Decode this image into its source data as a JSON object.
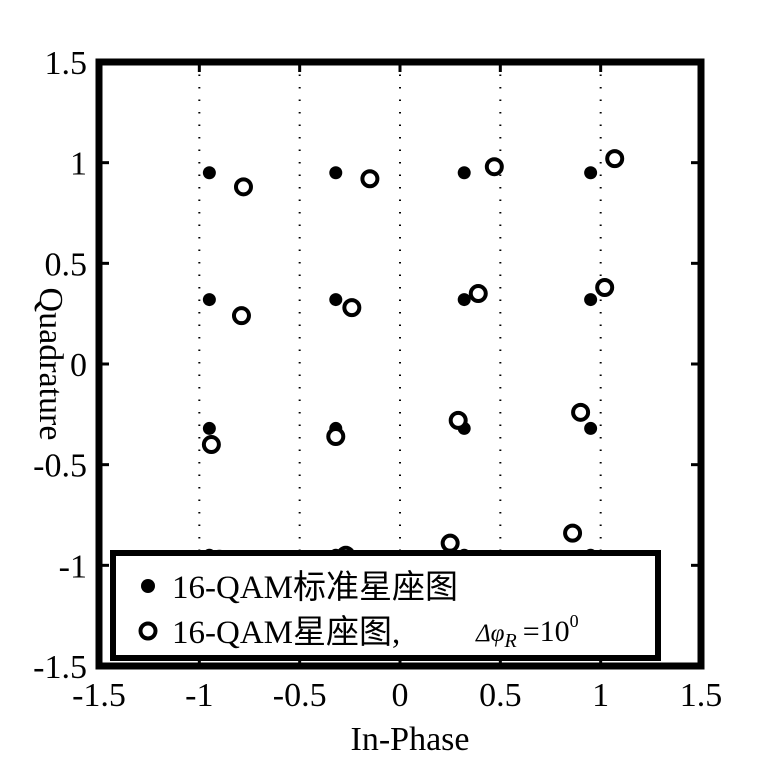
{
  "chart_data": {
    "type": "scatter",
    "title": "",
    "xlabel": "In-Phase",
    "ylabel": "Quadrature",
    "xlim": [
      -1.5,
      1.5
    ],
    "ylim": [
      -1.5,
      1.5
    ],
    "xticks": [
      -1.5,
      -1,
      -0.5,
      0,
      0.5,
      1,
      1.5
    ],
    "yticks": [
      -1.5,
      -1,
      -0.5,
      0,
      0.5,
      1,
      1.5
    ],
    "xtick_labels": [
      "-1.5",
      "-1",
      "-0.5",
      "0",
      "0.5",
      "1",
      "1.5"
    ],
    "ytick_labels": [
      "-1.5",
      "-1",
      "-0.5",
      "0",
      "0.5",
      "1",
      "1.5"
    ],
    "grid": "vertical dotted",
    "legend_position": "bottom",
    "series": [
      {
        "name": "16-QAM标准星座图",
        "marker": "filled-dot",
        "color": "#000000",
        "points": [
          [
            -0.95,
            0.95
          ],
          [
            -0.32,
            0.95
          ],
          [
            0.32,
            0.95
          ],
          [
            0.95,
            0.95
          ],
          [
            -0.95,
            0.32
          ],
          [
            -0.32,
            0.32
          ],
          [
            0.32,
            0.32
          ],
          [
            0.95,
            0.32
          ],
          [
            -0.95,
            -0.32
          ],
          [
            -0.32,
            -0.32
          ],
          [
            0.32,
            -0.32
          ],
          [
            0.95,
            -0.32
          ],
          [
            -0.95,
            -0.95
          ],
          [
            -0.32,
            -0.95
          ],
          [
            0.32,
            -0.95
          ],
          [
            0.95,
            -0.95
          ]
        ]
      },
      {
        "name": "16-QAM星座图,",
        "name_math": "Δφ",
        "name_math_sub": "R",
        "name_math_rest": "=10",
        "name_math_sup": "0",
        "marker": "hollow-circle",
        "color": "#000000",
        "points": [
          [
            -0.78,
            0.88
          ],
          [
            -0.15,
            0.92
          ],
          [
            0.47,
            0.98
          ],
          [
            1.07,
            1.02
          ],
          [
            -0.79,
            0.24
          ],
          [
            -0.24,
            0.28
          ],
          [
            0.39,
            0.35
          ],
          [
            1.02,
            0.38
          ],
          [
            -0.94,
            -0.4
          ],
          [
            -0.32,
            -0.36
          ],
          [
            0.29,
            -0.28
          ],
          [
            0.9,
            -0.24
          ],
          [
            -0.9,
            -0.97
          ],
          [
            -0.27,
            -0.95
          ],
          [
            0.25,
            -0.89
          ],
          [
            0.86,
            -0.84
          ]
        ]
      }
    ]
  }
}
